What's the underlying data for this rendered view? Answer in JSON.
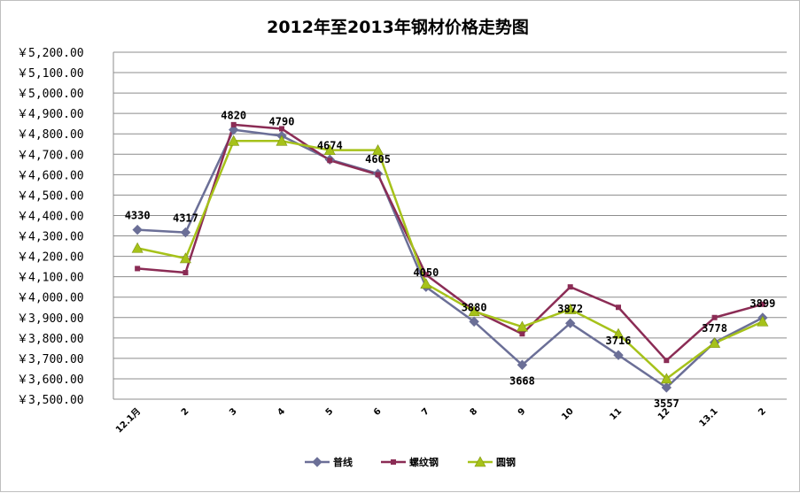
{
  "chart_data": {
    "type": "line",
    "title": "2012年至2013年钢材价格走势图",
    "xlabel": "",
    "ylabel": "",
    "categories": [
      "12.1月",
      "2",
      "3",
      "4",
      "5",
      "6",
      "7",
      "8",
      "9",
      "10",
      "11",
      "12",
      "13.1",
      "2"
    ],
    "ylim": [
      3500,
      5200
    ],
    "ystep": 100,
    "ytick_labels": [
      "￥3,500.00",
      "￥3,600.00",
      "￥3,700.00",
      "￥3,800.00",
      "￥3,900.00",
      "￥4,000.00",
      "￥4,100.00",
      "￥4,200.00",
      "￥4,300.00",
      "￥4,400.00",
      "￥4,500.00",
      "￥4,600.00",
      "￥4,700.00",
      "￥4,800.00",
      "￥4,900.00",
      "￥5,000.00",
      "￥5,100.00",
      "￥5,200.00"
    ],
    "grid": true,
    "legend_position": "bottom",
    "series": [
      {
        "name": "普线",
        "color": "#6b6f97",
        "marker": "diamond",
        "values": [
          4330,
          4317,
          4820,
          4790,
          4674,
          4605,
          4050,
          3880,
          3668,
          3872,
          3716,
          3557,
          3778,
          3899
        ],
        "data_labels": [
          "4330",
          "4317",
          "4820",
          "4790",
          "4674",
          "4605",
          "4050",
          "3880",
          "3668",
          "3872",
          "3716",
          "3557",
          "3778",
          "3899"
        ]
      },
      {
        "name": "螺纹钢",
        "color": "#8b2c55",
        "marker": "square",
        "values": [
          4140,
          4120,
          4845,
          4825,
          4670,
          4600,
          4110,
          3935,
          3820,
          4050,
          3950,
          3690,
          3900,
          3965
        ]
      },
      {
        "name": "圆钢",
        "color": "#a6c21a",
        "marker": "triangle",
        "values": [
          4240,
          4190,
          4765,
          4765,
          4720,
          4720,
          4065,
          3930,
          3855,
          3940,
          3820,
          3600,
          3775,
          3880
        ]
      }
    ]
  }
}
